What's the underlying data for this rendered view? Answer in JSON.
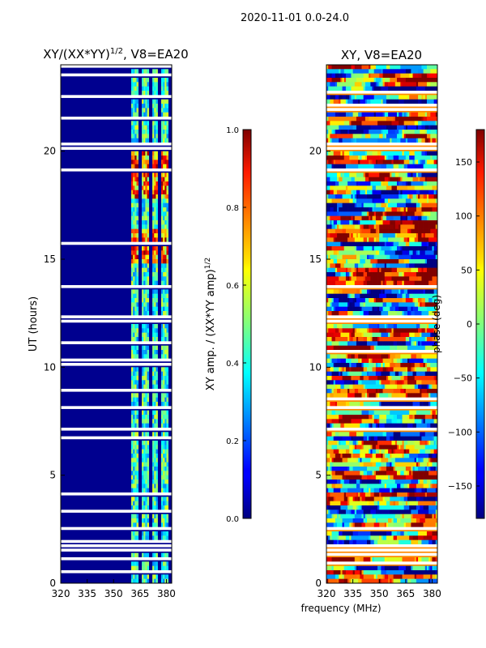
{
  "figure_title": "2020-11-01 0.0-24.0",
  "chart_data": [
    {
      "type": "heatmap",
      "title": "XY/(XX*YY)",
      "title_exponent": "1/2",
      "title_suffix": ", V8=EA20",
      "xlabel": "frequency (MHz)",
      "ylabel": "UT (hours)",
      "xlim": [
        320,
        383
      ],
      "ylim": [
        0,
        24
      ],
      "x_ticks": [
        320,
        335,
        350,
        365,
        380
      ],
      "y_ticks": [
        0,
        5,
        10,
        15,
        20
      ],
      "colorbar": {
        "label": "XY amp. / (XX*YY amp)",
        "label_exponent": "1/2",
        "range": [
          0.0,
          1.0
        ],
        "ticks": [
          "0.0",
          "0.2",
          "0.4",
          "0.6",
          "0.8",
          "1.0"
        ],
        "colormap": "jet"
      },
      "features": {
        "background_value": 0.1,
        "flagged_hour_bands": [
          [
            1.5,
            1.7
          ],
          [
            8.05,
            8.2
          ],
          [
            11.95,
            12.45
          ],
          [
            20.05,
            20.3
          ],
          [
            21.4,
            21.6
          ]
        ],
        "bright_frequency_bands_mhz": [
          [
            360,
            364
          ],
          [
            366,
            370
          ],
          [
            372,
            375
          ],
          [
            377,
            381
          ]
        ],
        "strong_hour_ranges": [
          [
            14.9,
            16.4
          ],
          [
            17.8,
            20.0
          ]
        ]
      }
    },
    {
      "type": "heatmap",
      "title": "XY, V8=EA20",
      "xlabel": "frequency (MHz)",
      "ylabel": "",
      "xlim": [
        320,
        383
      ],
      "ylim": [
        0,
        24
      ],
      "x_ticks": [
        320,
        335,
        350,
        365,
        380
      ],
      "y_ticks": [
        0,
        5,
        10,
        15,
        20
      ],
      "colorbar": {
        "label": "phase (deg)",
        "range": [
          -180,
          180
        ],
        "ticks": [
          "150",
          "100",
          "50",
          "0",
          "−50",
          "−100",
          "−150"
        ],
        "tick_values": [
          150,
          100,
          50,
          0,
          -50,
          -100,
          -150
        ],
        "colormap": "jet"
      },
      "features": {
        "flagged_hour_bands": [
          [
            1.5,
            1.7
          ],
          [
            8.05,
            8.2
          ],
          [
            11.95,
            12.45
          ],
          [
            20.05,
            20.3
          ]
        ],
        "noise": "phase noise across full band"
      }
    }
  ]
}
